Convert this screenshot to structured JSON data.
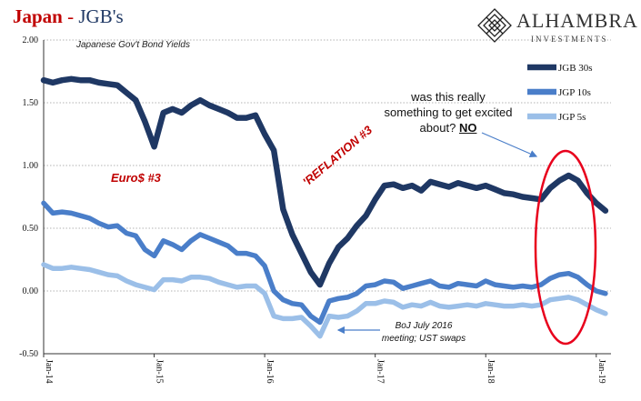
{
  "header": {
    "title_red": "Japan",
    "title_sep": " - ",
    "title_blue": "JGB's",
    "subtitle": "Japanese Gov't Bond Yields"
  },
  "logo": {
    "name": "ALHAMBRA",
    "sub": "INVESTMENTS",
    "icon": "diamond-lattice-icon"
  },
  "annotations": {
    "question_l1": "was this really",
    "question_l2": "something to get excited",
    "question_l3": "about?",
    "question_no": "NO",
    "euro": "Euro$ #3",
    "reflation": "'REFLATION #3",
    "boj_l1": "BoJ July 2016",
    "boj_l2": "meeting; UST swaps"
  },
  "colors": {
    "jgb30": "#1f3864",
    "jgb10": "#4a7ec9",
    "jgb5": "#9bbfe8",
    "title_red": "#c00000",
    "circle": "#e8001c",
    "arrow": "#4a7ec9"
  },
  "chart_data": {
    "type": "line",
    "title": "Japan - JGB's",
    "subtitle": "Japanese Gov't Bond Yields",
    "ylim": [
      -0.5,
      2.0
    ],
    "yticks": [
      "2.00",
      "1.50",
      "1.00",
      "0.50",
      "0.00",
      "-0.50"
    ],
    "ytick_values": [
      2.0,
      1.5,
      1.0,
      0.5,
      0.0,
      -0.5
    ],
    "xlim": [
      "Jan-14",
      "Jan-19+"
    ],
    "xticks": [
      "Jan-14",
      "Jan-15",
      "Jan-16",
      "Jan-17",
      "Jan-18",
      "Jan-19"
    ],
    "grid": "horizontal dotted",
    "legend_position": "top-right",
    "series": [
      {
        "name": "JGB 30s",
        "points": [
          [
            "2014-01",
            1.68
          ],
          [
            "2014-02",
            1.66
          ],
          [
            "2014-03",
            1.68
          ],
          [
            "2014-04",
            1.69
          ],
          [
            "2014-05",
            1.68
          ],
          [
            "2014-06",
            1.68
          ],
          [
            "2014-07",
            1.66
          ],
          [
            "2014-08",
            1.65
          ],
          [
            "2014-09",
            1.64
          ],
          [
            "2014-10",
            1.58
          ],
          [
            "2014-11",
            1.52
          ],
          [
            "2014-12",
            1.35
          ],
          [
            "2015-01",
            1.15
          ],
          [
            "2015-02",
            1.42
          ],
          [
            "2015-03",
            1.45
          ],
          [
            "2015-04",
            1.42
          ],
          [
            "2015-05",
            1.48
          ],
          [
            "2015-06",
            1.52
          ],
          [
            "2015-07",
            1.48
          ],
          [
            "2015-08",
            1.45
          ],
          [
            "2015-09",
            1.42
          ],
          [
            "2015-10",
            1.38
          ],
          [
            "2015-11",
            1.38
          ],
          [
            "2015-12",
            1.4
          ],
          [
            "2016-01",
            1.25
          ],
          [
            "2016-02",
            1.12
          ],
          [
            "2016-03",
            0.65
          ],
          [
            "2016-04",
            0.45
          ],
          [
            "2016-05",
            0.3
          ],
          [
            "2016-06",
            0.15
          ],
          [
            "2016-07",
            0.05
          ],
          [
            "2016-08",
            0.22
          ],
          [
            "2016-09",
            0.35
          ],
          [
            "2016-10",
            0.42
          ],
          [
            "2016-11",
            0.52
          ],
          [
            "2016-12",
            0.6
          ],
          [
            "2017-01",
            0.73
          ],
          [
            "2017-02",
            0.84
          ],
          [
            "2017-03",
            0.85
          ],
          [
            "2017-04",
            0.82
          ],
          [
            "2017-05",
            0.84
          ],
          [
            "2017-06",
            0.8
          ],
          [
            "2017-07",
            0.87
          ],
          [
            "2017-08",
            0.85
          ],
          [
            "2017-09",
            0.83
          ],
          [
            "2017-10",
            0.86
          ],
          [
            "2017-11",
            0.84
          ],
          [
            "2017-12",
            0.82
          ],
          [
            "2018-01",
            0.84
          ],
          [
            "2018-02",
            0.81
          ],
          [
            "2018-03",
            0.78
          ],
          [
            "2018-04",
            0.77
          ],
          [
            "2018-05",
            0.75
          ],
          [
            "2018-06",
            0.74
          ],
          [
            "2018-07",
            0.73
          ],
          [
            "2018-08",
            0.82
          ],
          [
            "2018-09",
            0.88
          ],
          [
            "2018-10",
            0.92
          ],
          [
            "2018-11",
            0.88
          ],
          [
            "2018-12",
            0.78
          ],
          [
            "2019-01",
            0.7
          ],
          [
            "2019-02",
            0.64
          ]
        ]
      },
      {
        "name": "JGP 10s",
        "points": [
          [
            "2014-01",
            0.7
          ],
          [
            "2014-02",
            0.62
          ],
          [
            "2014-03",
            0.63
          ],
          [
            "2014-04",
            0.62
          ],
          [
            "2014-05",
            0.6
          ],
          [
            "2014-06",
            0.58
          ],
          [
            "2014-07",
            0.54
          ],
          [
            "2014-08",
            0.51
          ],
          [
            "2014-09",
            0.52
          ],
          [
            "2014-10",
            0.46
          ],
          [
            "2014-11",
            0.44
          ],
          [
            "2014-12",
            0.33
          ],
          [
            "2015-01",
            0.28
          ],
          [
            "2015-02",
            0.4
          ],
          [
            "2015-03",
            0.37
          ],
          [
            "2015-04",
            0.33
          ],
          [
            "2015-05",
            0.4
          ],
          [
            "2015-06",
            0.45
          ],
          [
            "2015-07",
            0.42
          ],
          [
            "2015-08",
            0.39
          ],
          [
            "2015-09",
            0.36
          ],
          [
            "2015-10",
            0.3
          ],
          [
            "2015-11",
            0.3
          ],
          [
            "2015-12",
            0.28
          ],
          [
            "2016-01",
            0.2
          ],
          [
            "2016-02",
            0.0
          ],
          [
            "2016-03",
            -0.07
          ],
          [
            "2016-04",
            -0.1
          ],
          [
            "2016-05",
            -0.11
          ],
          [
            "2016-06",
            -0.2
          ],
          [
            "2016-07",
            -0.25
          ],
          [
            "2016-08",
            -0.08
          ],
          [
            "2016-09",
            -0.06
          ],
          [
            "2016-10",
            -0.05
          ],
          [
            "2016-11",
            -0.02
          ],
          [
            "2016-12",
            0.04
          ],
          [
            "2017-01",
            0.05
          ],
          [
            "2017-02",
            0.08
          ],
          [
            "2017-03",
            0.07
          ],
          [
            "2017-04",
            0.02
          ],
          [
            "2017-05",
            0.04
          ],
          [
            "2017-06",
            0.06
          ],
          [
            "2017-07",
            0.08
          ],
          [
            "2017-08",
            0.04
          ],
          [
            "2017-09",
            0.03
          ],
          [
            "2017-10",
            0.06
          ],
          [
            "2017-11",
            0.05
          ],
          [
            "2017-12",
            0.04
          ],
          [
            "2018-01",
            0.08
          ],
          [
            "2018-02",
            0.05
          ],
          [
            "2018-03",
            0.04
          ],
          [
            "2018-04",
            0.03
          ],
          [
            "2018-05",
            0.04
          ],
          [
            "2018-06",
            0.03
          ],
          [
            "2018-07",
            0.05
          ],
          [
            "2018-08",
            0.1
          ],
          [
            "2018-09",
            0.13
          ],
          [
            "2018-10",
            0.14
          ],
          [
            "2018-11",
            0.11
          ],
          [
            "2018-12",
            0.05
          ],
          [
            "2019-01",
            0.0
          ],
          [
            "2019-02",
            -0.02
          ]
        ]
      },
      {
        "name": "JGP 5s",
        "points": [
          [
            "2014-01",
            0.21
          ],
          [
            "2014-02",
            0.18
          ],
          [
            "2014-03",
            0.18
          ],
          [
            "2014-04",
            0.19
          ],
          [
            "2014-05",
            0.18
          ],
          [
            "2014-06",
            0.17
          ],
          [
            "2014-07",
            0.15
          ],
          [
            "2014-08",
            0.13
          ],
          [
            "2014-09",
            0.12
          ],
          [
            "2014-10",
            0.08
          ],
          [
            "2014-11",
            0.05
          ],
          [
            "2014-12",
            0.03
          ],
          [
            "2015-01",
            0.01
          ],
          [
            "2015-02",
            0.09
          ],
          [
            "2015-03",
            0.09
          ],
          [
            "2015-04",
            0.08
          ],
          [
            "2015-05",
            0.11
          ],
          [
            "2015-06",
            0.11
          ],
          [
            "2015-07",
            0.1
          ],
          [
            "2015-08",
            0.07
          ],
          [
            "2015-09",
            0.05
          ],
          [
            "2015-10",
            0.03
          ],
          [
            "2015-11",
            0.04
          ],
          [
            "2015-12",
            0.04
          ],
          [
            "2016-01",
            -0.02
          ],
          [
            "2016-02",
            -0.2
          ],
          [
            "2016-03",
            -0.22
          ],
          [
            "2016-04",
            -0.22
          ],
          [
            "2016-05",
            -0.21
          ],
          [
            "2016-06",
            -0.28
          ],
          [
            "2016-07",
            -0.36
          ],
          [
            "2016-08",
            -0.2
          ],
          [
            "2016-09",
            -0.21
          ],
          [
            "2016-10",
            -0.2
          ],
          [
            "2016-11",
            -0.16
          ],
          [
            "2016-12",
            -0.1
          ],
          [
            "2017-01",
            -0.1
          ],
          [
            "2017-02",
            -0.08
          ],
          [
            "2017-03",
            -0.09
          ],
          [
            "2017-04",
            -0.13
          ],
          [
            "2017-05",
            -0.11
          ],
          [
            "2017-06",
            -0.12
          ],
          [
            "2017-07",
            -0.09
          ],
          [
            "2017-08",
            -0.12
          ],
          [
            "2017-09",
            -0.13
          ],
          [
            "2017-10",
            -0.12
          ],
          [
            "2017-11",
            -0.11
          ],
          [
            "2017-12",
            -0.12
          ],
          [
            "2018-01",
            -0.1
          ],
          [
            "2018-02",
            -0.11
          ],
          [
            "2018-03",
            -0.12
          ],
          [
            "2018-04",
            -0.12
          ],
          [
            "2018-05",
            -0.11
          ],
          [
            "2018-06",
            -0.12
          ],
          [
            "2018-07",
            -0.11
          ],
          [
            "2018-08",
            -0.07
          ],
          [
            "2018-09",
            -0.06
          ],
          [
            "2018-10",
            -0.05
          ],
          [
            "2018-11",
            -0.07
          ],
          [
            "2018-12",
            -0.11
          ],
          [
            "2019-01",
            -0.15
          ],
          [
            "2019-02",
            -0.18
          ]
        ]
      }
    ]
  }
}
